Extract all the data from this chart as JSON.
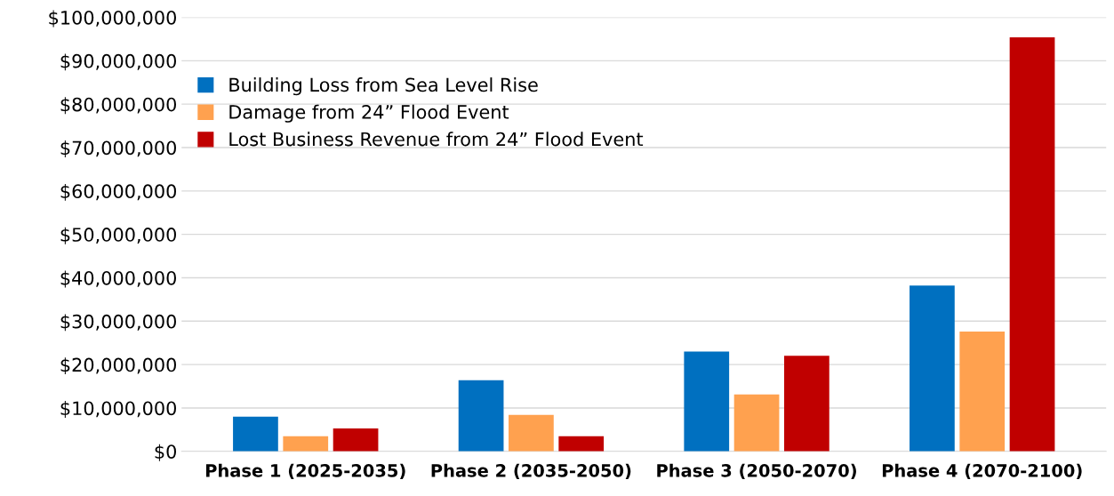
{
  "chart_data": {
    "type": "bar",
    "categories": [
      "Phase 1 (2025-2035)",
      "Phase 2 (2035-2050)",
      "Phase 3 (2050-2070)",
      "Phase 4 (2070-2100)"
    ],
    "series": [
      {
        "name": "Building Loss from Sea Level Rise",
        "color": "#0070c0",
        "values": [
          8000000,
          16400000,
          23000000,
          38200000
        ]
      },
      {
        "name": "Damage from 24” Flood Event",
        "color": "#ffa14f",
        "values": [
          3500000,
          8400000,
          13100000,
          27600000
        ]
      },
      {
        "name": "Lost Business Revenue from 24” Flood Event",
        "color": "#c00000",
        "values": [
          5300000,
          3500000,
          22000000,
          95400000
        ]
      }
    ],
    "ylim": [
      0,
      100000000
    ],
    "yticks": [
      {
        "value": 0,
        "label": "$0"
      },
      {
        "value": 10000000,
        "label": "$10,000,000"
      },
      {
        "value": 20000000,
        "label": "$20,000,000"
      },
      {
        "value": 30000000,
        "label": "$30,000,000"
      },
      {
        "value": 40000000,
        "label": "$40,000,000"
      },
      {
        "value": 50000000,
        "label": "$50,000,000"
      },
      {
        "value": 60000000,
        "label": "$60,000,000"
      },
      {
        "value": 70000000,
        "label": "$70,000,000"
      },
      {
        "value": 80000000,
        "label": "$80,000,000"
      },
      {
        "value": 90000000,
        "label": "$90,000,000"
      },
      {
        "value": 100000000,
        "label": "$100,000,000"
      }
    ],
    "grid": "y",
    "legend": "top left"
  }
}
